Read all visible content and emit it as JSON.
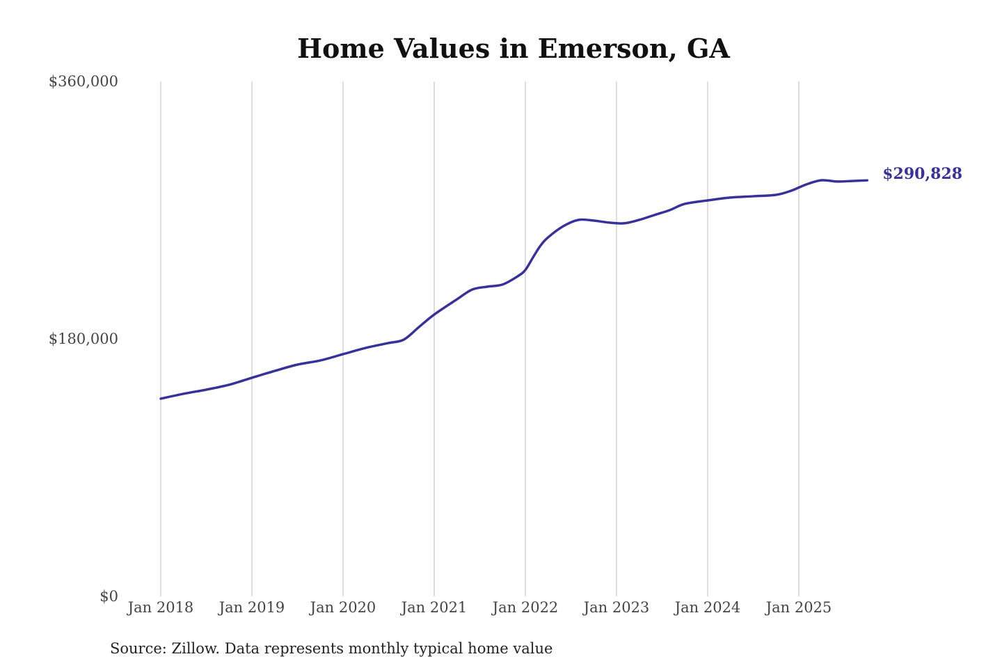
{
  "chart_data": {
    "type": "line",
    "title": "Home Values in Emerson, GA",
    "xlabel": "",
    "ylabel": "",
    "source": "Source: Zillow. Data represents monthly typical home value",
    "ylim": [
      0,
      360000
    ],
    "xlim": [
      "2018-01",
      "2025-10"
    ],
    "y_ticks": [
      {
        "value": 0,
        "label": "$0"
      },
      {
        "value": 180000,
        "label": "$180,000"
      },
      {
        "value": 360000,
        "label": "$360,000"
      }
    ],
    "x_ticks": [
      {
        "date": "2018-01",
        "label": "Jan 2018"
      },
      {
        "date": "2019-01",
        "label": "Jan 2019"
      },
      {
        "date": "2020-01",
        "label": "Jan 2020"
      },
      {
        "date": "2021-01",
        "label": "Jan 2021"
      },
      {
        "date": "2022-01",
        "label": "Jan 2022"
      },
      {
        "date": "2023-01",
        "label": "Jan 2023"
      },
      {
        "date": "2024-01",
        "label": "Jan 2024"
      },
      {
        "date": "2025-01",
        "label": "Jan 2025"
      }
    ],
    "grid": "vertical",
    "colors": {
      "line": "#38319a",
      "grid": "#c8c8c8"
    },
    "end_label": "$290,828",
    "series": [
      {
        "points": [
          [
            "2018-01",
            138200
          ],
          [
            "2018-04",
            141600
          ],
          [
            "2018-07",
            144500
          ],
          [
            "2018-10",
            147900
          ],
          [
            "2019-01",
            152800
          ],
          [
            "2019-04",
            157600
          ],
          [
            "2019-07",
            162000
          ],
          [
            "2019-10",
            164900
          ],
          [
            "2020-01",
            169300
          ],
          [
            "2020-04",
            173700
          ],
          [
            "2020-07",
            177100
          ],
          [
            "2020-09",
            179500
          ],
          [
            "2020-11",
            188300
          ],
          [
            "2021-01",
            197000
          ],
          [
            "2021-04",
            207700
          ],
          [
            "2021-06",
            214500
          ],
          [
            "2021-08",
            216500
          ],
          [
            "2021-10",
            218000
          ],
          [
            "2021-12",
            223800
          ],
          [
            "2022-01",
            228200
          ],
          [
            "2022-02",
            236900
          ],
          [
            "2022-03",
            245200
          ],
          [
            "2022-04",
            251000
          ],
          [
            "2022-06",
            258800
          ],
          [
            "2022-08",
            263200
          ],
          [
            "2022-10",
            262700
          ],
          [
            "2022-12",
            261300
          ],
          [
            "2023-02",
            260800
          ],
          [
            "2023-04",
            263200
          ],
          [
            "2023-06",
            266600
          ],
          [
            "2023-08",
            270000
          ],
          [
            "2023-10",
            274400
          ],
          [
            "2024-01",
            276800
          ],
          [
            "2024-04",
            278800
          ],
          [
            "2024-07",
            279700
          ],
          [
            "2024-10",
            280700
          ],
          [
            "2024-12",
            283600
          ],
          [
            "2025-02",
            288000
          ],
          [
            "2025-04",
            290900
          ],
          [
            "2025-06",
            290000
          ],
          [
            "2025-08",
            290400
          ],
          [
            "2025-10",
            290828
          ]
        ]
      }
    ]
  }
}
